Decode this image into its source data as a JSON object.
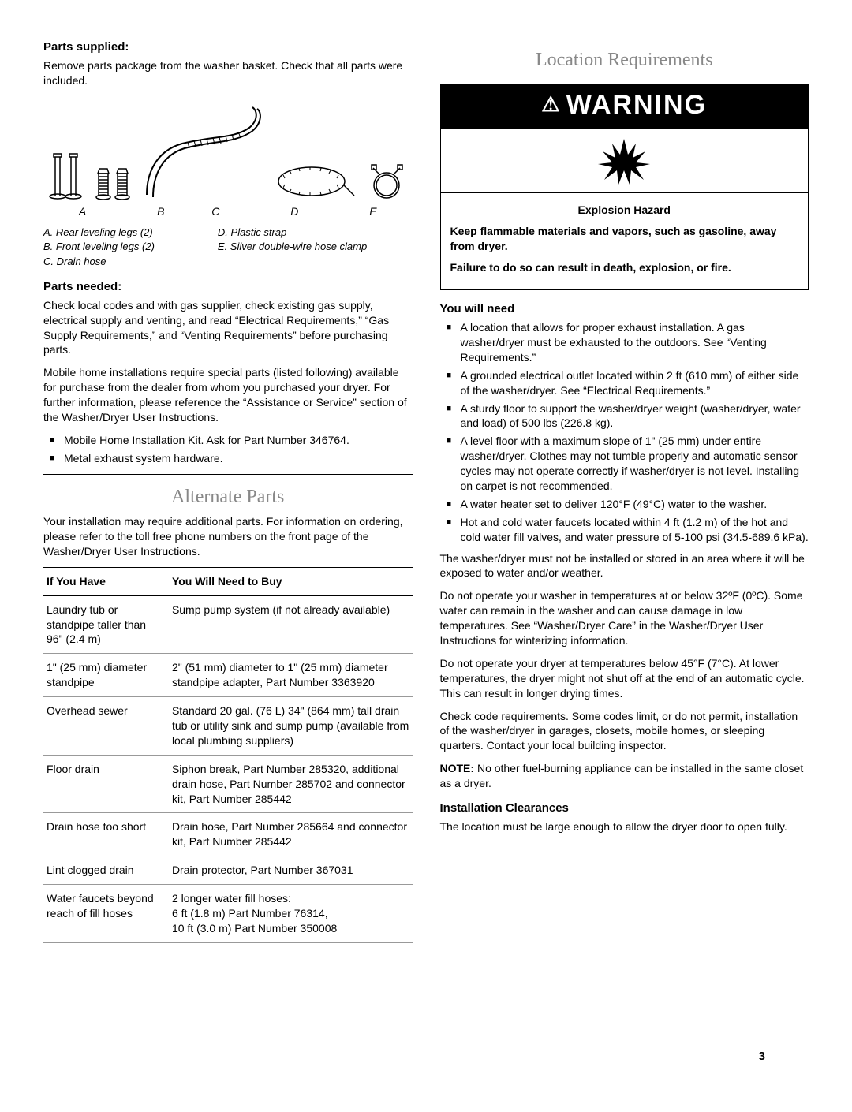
{
  "left": {
    "parts_supplied_title": "Parts supplied:",
    "parts_supplied_body": "Remove parts package from the washer basket. Check that all parts were included.",
    "diagram_labels": [
      "A",
      "B",
      "C",
      "D",
      "E"
    ],
    "legend_left": [
      "A. Rear leveling legs (2)",
      "B. Front leveling legs (2)",
      "C. Drain hose"
    ],
    "legend_right": [
      "D. Plastic strap",
      "E. Silver double-wire hose clamp"
    ],
    "parts_needed_title": "Parts needed:",
    "parts_needed_p1": "Check local codes and with gas supplier, check existing gas supply, electrical supply and venting, and read “Electrical Requirements,” “Gas Supply Requirements,” and “Venting Requirements” before purchasing parts.",
    "parts_needed_p2": "Mobile home installations require special parts (listed following) available for purchase from the dealer from whom you purchased your dryer. For further information, please reference the “Assistance or Service” section of the Washer/Dryer User Instructions.",
    "parts_needed_bullets": [
      "Mobile Home Installation Kit. Ask for Part Number 346764.",
      "Metal exhaust system hardware."
    ],
    "alternate_title": "Alternate Parts",
    "alternate_intro": "Your installation may require additional parts. For information on ordering, please refer to the toll free phone numbers on the front page of the Washer/Dryer User Instructions.",
    "table_head": [
      "If You Have",
      "You Will Need to Buy"
    ],
    "table_rows": [
      [
        "Laundry tub or standpipe taller than 96\" (2.4 m)",
        "Sump pump system (if not already available)"
      ],
      [
        "1\" (25 mm) diameter standpipe",
        "2\" (51 mm) diameter to 1\" (25 mm) diameter standpipe adapter, Part Number 3363920"
      ],
      [
        "Overhead sewer",
        "Standard 20 gal. (76 L) 34\" (864 mm) tall drain tub or utility sink and sump pump (available from local plumbing suppliers)"
      ],
      [
        "Floor drain",
        "Siphon break, Part Number 285320, additional drain hose, Part Number 285702 and connector kit, Part Number 285442"
      ],
      [
        "Drain hose too short",
        "Drain hose, Part Number 285664 and connector kit, Part Number 285442"
      ],
      [
        "Lint clogged drain",
        "Drain protector, Part Number 367031"
      ],
      [
        "Water faucets beyond reach of fill hoses",
        "2 longer water fill hoses:\n6 ft (1.8 m) Part Number 76314,\n10 ft (3.0 m) Part Number 350008"
      ]
    ]
  },
  "right": {
    "section_title": "Location Requirements",
    "warning_label": "WARNING",
    "hazard_title": "Explosion Hazard",
    "hazard_p1": "Keep flammable materials and vapors, such as gasoline, away from dryer.",
    "hazard_p2": "Failure to do so can result in death, explosion, or fire.",
    "need_title": "You will need",
    "need_bullets": [
      "A location that allows for proper exhaust installation. A gas washer/dryer must be exhausted to the outdoors. See “Venting Requirements.”",
      "A grounded electrical outlet located within 2 ft (610 mm) of either side of the washer/dryer. See “Electrical Requirements.”",
      "A sturdy floor to support the washer/dryer weight (washer/dryer, water and load) of 500 lbs (226.8 kg).",
      "A level floor with a maximum slope of 1\" (25 mm) under entire washer/dryer. Clothes may not tumble properly and automatic sensor cycles may not operate correctly if washer/dryer is not level. Installing on carpet is not recommended.",
      "A water heater set to deliver 120°F (49°C) water to the washer.",
      "Hot and cold water faucets located within 4 ft (1.2 m) of the hot and cold water fill valves, and water pressure of 5-100 psi (34.5-689.6 kPa)."
    ],
    "para1": "The washer/dryer must not be installed or stored in an area where it will be exposed to water and/or weather.",
    "para2": "Do not operate your washer in temperatures at or below 32ºF (0ºC). Some water can remain in the washer and can cause damage in low temperatures. See “Washer/Dryer Care” in the Washer/Dryer User Instructions for winterizing information.",
    "para3": "Do not operate your dryer at temperatures below 45°F (7°C). At lower temperatures, the dryer might not shut off at the end of an automatic cycle. This can result in longer drying times.",
    "para4": "Check code requirements. Some codes limit, or do not permit, installation of the washer/dryer in garages, closets, mobile homes, or sleeping quarters. Contact your local building inspector.",
    "note_label": "NOTE:",
    "note_body": " No other fuel-burning appliance can be installed in the same closet as a dryer.",
    "clearance_title": "Installation Clearances",
    "clearance_body": "The location must be large enough to allow the dryer door to open fully."
  },
  "page_number": "3"
}
